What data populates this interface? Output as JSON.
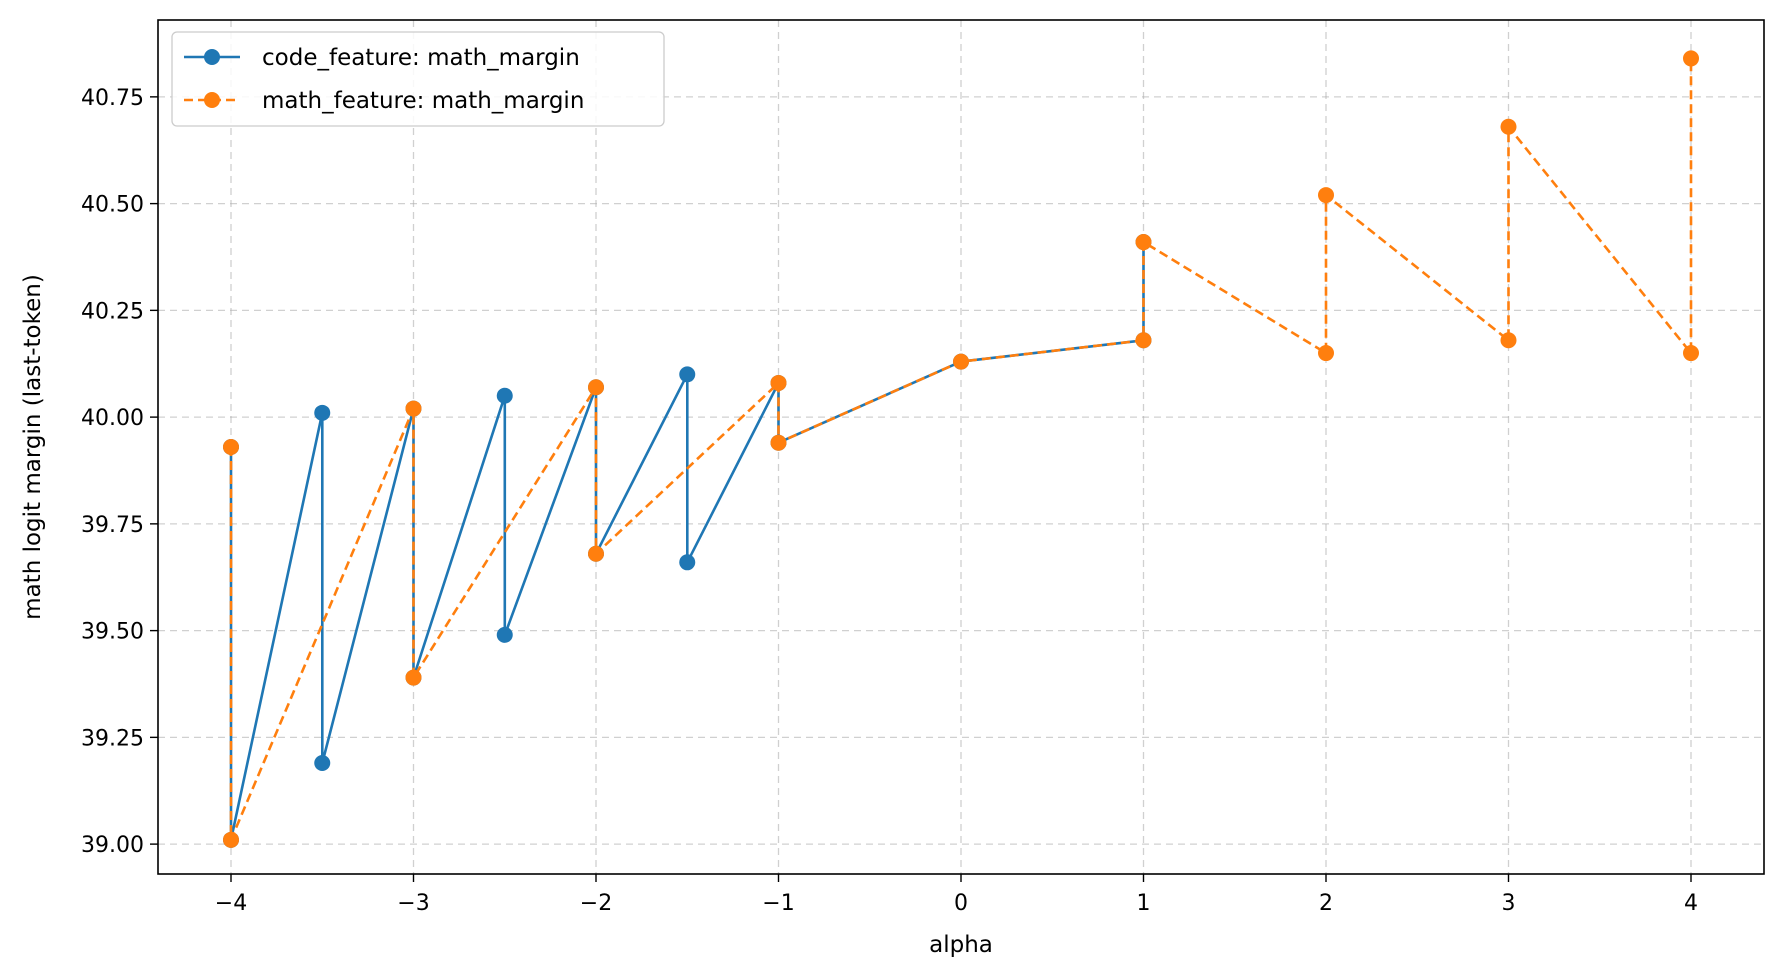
{
  "chart_data": {
    "type": "line",
    "title": "",
    "xlabel": "alpha",
    "ylabel": "math logit margin (last-token)",
    "xlim": [
      -4.4,
      4.4
    ],
    "ylim": [
      38.93,
      40.93
    ],
    "xticks": [
      -4,
      -3,
      -2,
      -1,
      0,
      1,
      2,
      3,
      4
    ],
    "xtick_labels": [
      "−4",
      "−3",
      "−2",
      "−1",
      "0",
      "1",
      "2",
      "3",
      "4"
    ],
    "yticks": [
      39.0,
      39.25,
      39.5,
      39.75,
      40.0,
      40.25,
      40.5,
      40.75
    ],
    "ytick_labels": [
      "39.00",
      "39.25",
      "39.50",
      "39.75",
      "40.00",
      "40.25",
      "40.50",
      "40.75"
    ],
    "grid": true,
    "legend_position": "top-left",
    "series": [
      {
        "name": "code_feature: math_margin",
        "color": "#1f77b4",
        "linestyle": "solid",
        "marker": "circle",
        "points": [
          {
            "x": -4,
            "y": 39.93
          },
          {
            "x": -4,
            "y": 39.01
          },
          {
            "x": -3.5,
            "y": 40.01
          },
          {
            "x": -3.5,
            "y": 39.19
          },
          {
            "x": -3,
            "y": 40.02
          },
          {
            "x": -3,
            "y": 39.39
          },
          {
            "x": -2.5,
            "y": 40.05
          },
          {
            "x": -2.5,
            "y": 39.49
          },
          {
            "x": -2,
            "y": 40.07
          },
          {
            "x": -2,
            "y": 39.68
          },
          {
            "x": -1.5,
            "y": 40.1
          },
          {
            "x": -1.5,
            "y": 39.66
          },
          {
            "x": -1,
            "y": 40.08
          },
          {
            "x": -1,
            "y": 39.94
          },
          {
            "x": 0,
            "y": 40.13
          },
          {
            "x": 1,
            "y": 40.18
          },
          {
            "x": 1,
            "y": 40.41
          }
        ]
      },
      {
        "name": "math_feature: math_margin",
        "color": "#ff7f0e",
        "linestyle": "dashed",
        "marker": "circle",
        "points": [
          {
            "x": -4,
            "y": 39.93
          },
          {
            "x": -4,
            "y": 39.01
          },
          {
            "x": -3,
            "y": 40.02
          },
          {
            "x": -3,
            "y": 39.39
          },
          {
            "x": -2,
            "y": 40.07
          },
          {
            "x": -2,
            "y": 39.68
          },
          {
            "x": -1,
            "y": 40.08
          },
          {
            "x": -1,
            "y": 39.94
          },
          {
            "x": 0,
            "y": 40.13
          },
          {
            "x": 1,
            "y": 40.18
          },
          {
            "x": 1,
            "y": 40.41
          },
          {
            "x": 2,
            "y": 40.15
          },
          {
            "x": 2,
            "y": 40.52
          },
          {
            "x": 3,
            "y": 40.18
          },
          {
            "x": 3,
            "y": 40.68
          },
          {
            "x": 4,
            "y": 40.15
          },
          {
            "x": 4,
            "y": 40.84
          }
        ]
      }
    ]
  }
}
